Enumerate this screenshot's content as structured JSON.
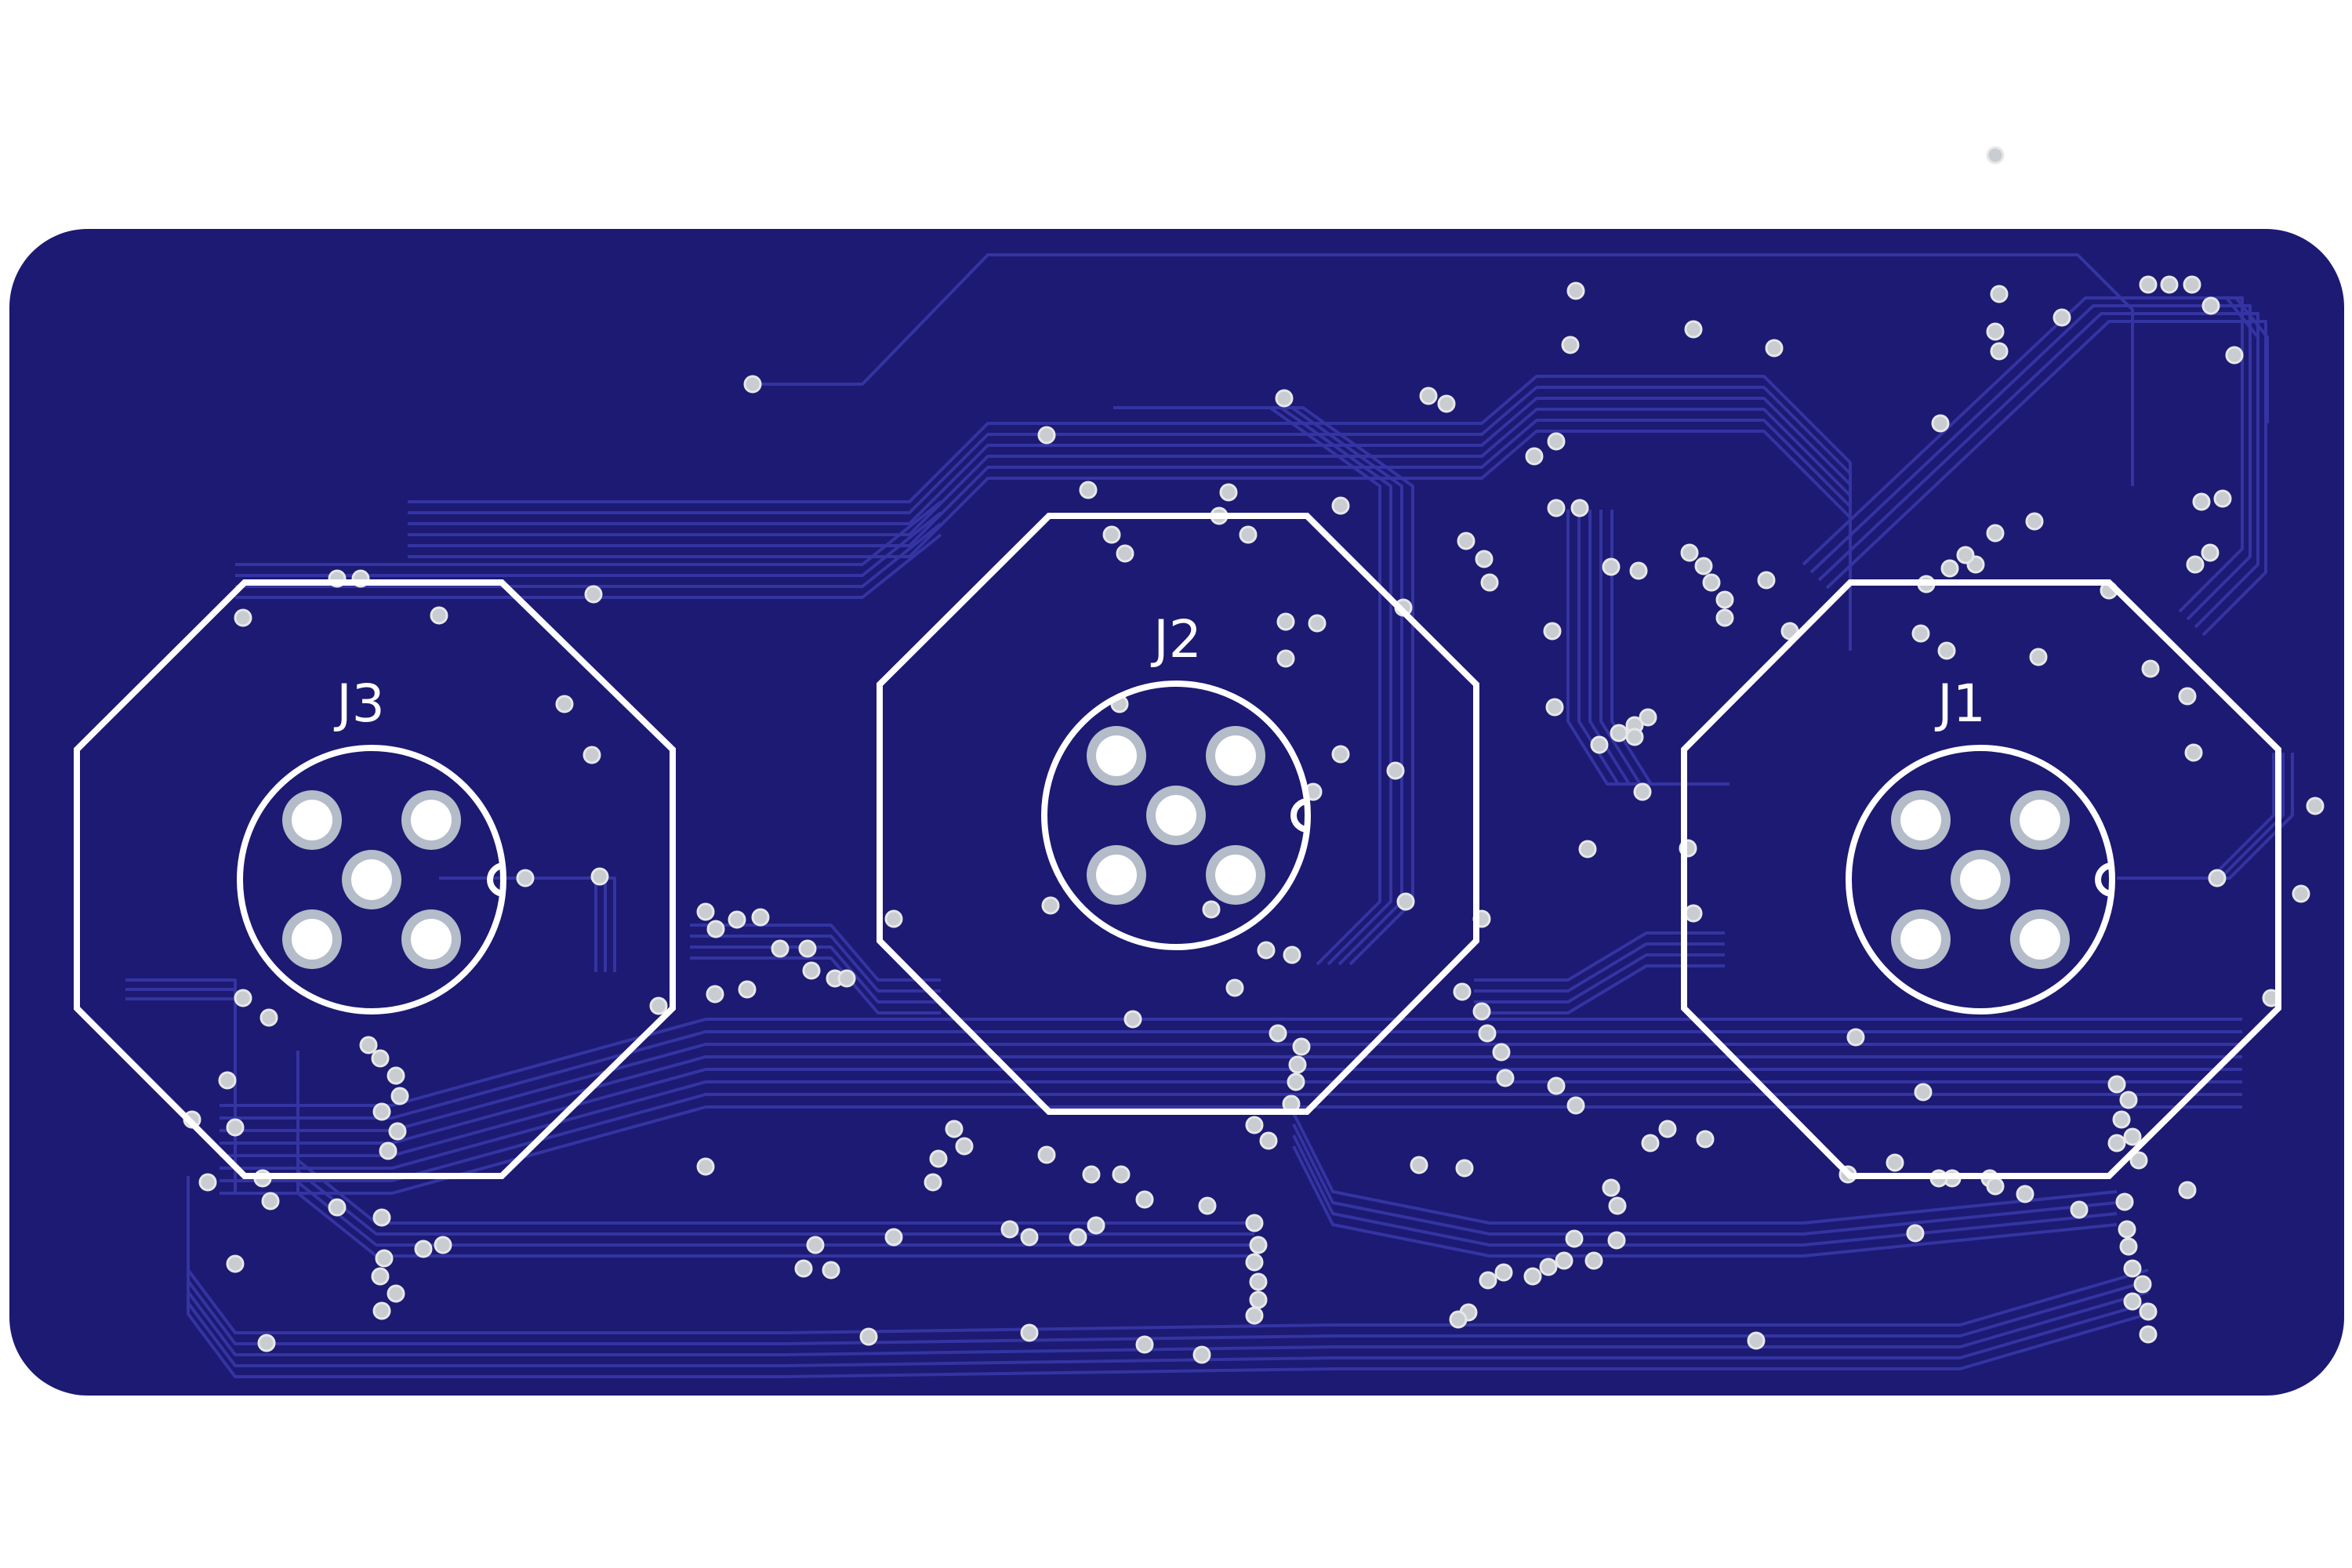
{
  "board": {
    "substrate_color": "#1c1a72",
    "trace_color": "#3434a2",
    "silkscreen_color": "#ffffff",
    "via_color": "#c9ccd0",
    "hole_color": "#ffffff",
    "pad_ring_color": "#b3bcc8"
  },
  "connectors": [
    {
      "id": "j3",
      "ref": "J3"
    },
    {
      "id": "j2",
      "ref": "J2"
    },
    {
      "id": "j1",
      "ref": "J1"
    }
  ]
}
